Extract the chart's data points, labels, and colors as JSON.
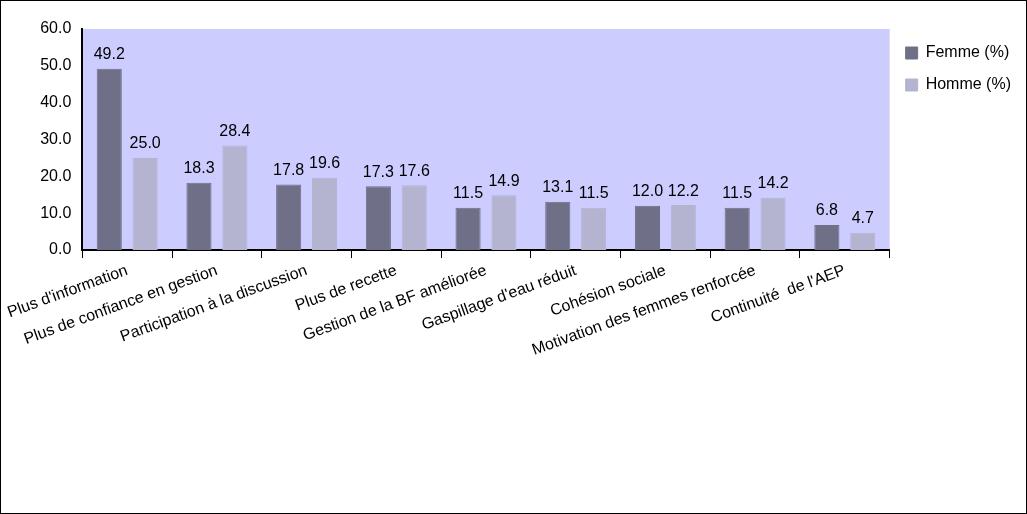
{
  "chart_data": {
    "type": "bar",
    "categories": [
      "Plus d'information",
      "Plus de confiance en gestion",
      "Participation à la discussion",
      "Plus de recette",
      "Gestion de la BF améliorée",
      "Gaspillage d'eau réduit",
      "Cohésion sociale",
      "Motivation des femmes renforcée",
      "Continuité  de l'AEP"
    ],
    "series": [
      {
        "name": "Femme (%)",
        "color": "#6f6f88",
        "values": [
          49.2,
          18.3,
          17.8,
          17.3,
          11.5,
          13.1,
          12.0,
          11.5,
          6.8
        ],
        "value_labels": [
          "49.2",
          "18.3",
          "17.8",
          "17.3",
          "11.5",
          "13.1",
          "12.0",
          "11.5",
          "6.8"
        ]
      },
      {
        "name": "Homme (%)",
        "color": "#b4b4d0",
        "values": [
          25.0,
          28.4,
          19.6,
          17.6,
          14.9,
          11.5,
          12.2,
          14.2,
          4.7
        ],
        "value_labels": [
          "25.0",
          "28.4",
          "19.6",
          "17.6",
          "14.9",
          "11.5",
          "12.2",
          "14.2",
          "4.7"
        ]
      }
    ],
    "ylim": [
      0,
      60
    ],
    "yticks": [
      {
        "value": 0,
        "label": "0.0"
      },
      {
        "value": 10,
        "label": "10.0"
      },
      {
        "value": 20,
        "label": "20.0"
      },
      {
        "value": 30,
        "label": "30.0"
      },
      {
        "value": 40,
        "label": "40.0"
      },
      {
        "value": 50,
        "label": "50.0"
      },
      {
        "value": 60,
        "label": "60.0"
      }
    ],
    "grid": false,
    "legend": "top right"
  }
}
